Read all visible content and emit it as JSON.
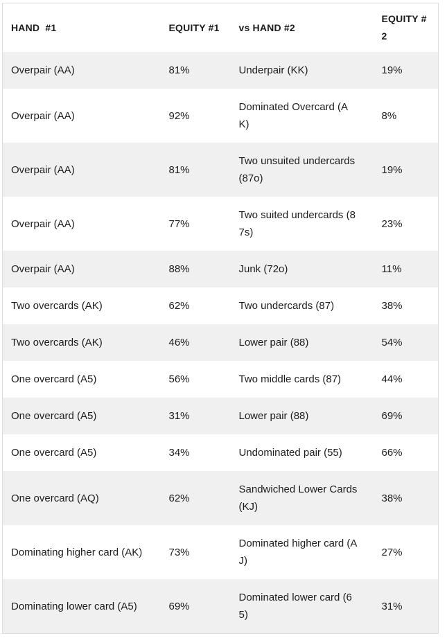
{
  "page": {
    "background": "#ffffff"
  },
  "table": {
    "stripe_color": "#f0f0f0",
    "border_color": "#dcdcdc",
    "text_color": "#1c1c1c",
    "columns": [
      {
        "label": "HAND  #1"
      },
      {
        "label": "EQUITY #1"
      },
      {
        "label": "vs HAND #2"
      },
      {
        "label": "EQUITY #\n2"
      }
    ],
    "rows": [
      {
        "hand1": "Overpair (AA)",
        "equity1": "81%",
        "hand2": "Underpair (KK)",
        "equity2": "19%"
      },
      {
        "hand1": "Overpair (AA)",
        "equity1": "92%",
        "hand2": "Dominated Overcard (A\nK)",
        "equity2": "8%"
      },
      {
        "hand1": "Overpair (AA)",
        "equity1": "81%",
        "hand2": "Two unsuited undercards\n(87o)",
        "equity2": "19%"
      },
      {
        "hand1": "Overpair (AA)",
        "equity1": "77%",
        "hand2": "Two suited undercards (8\n7s)",
        "equity2": "23%"
      },
      {
        "hand1": "Overpair (AA)",
        "equity1": "88%",
        "hand2": "Junk (72o)",
        "equity2": "11%"
      },
      {
        "hand1": "Two overcards (AK)",
        "equity1": "62%",
        "hand2": "Two undercards (87)",
        "equity2": "38%"
      },
      {
        "hand1": "Two overcards (AK)",
        "equity1": "46%",
        "hand2": "Lower pair (88)",
        "equity2": "54%"
      },
      {
        "hand1": "One overcard (A5)",
        "equity1": "56%",
        "hand2": "Two middle cards (87)",
        "equity2": "44%"
      },
      {
        "hand1": "One overcard (A5)",
        "equity1": "31%",
        "hand2": "Lower pair (88)",
        "equity2": "69%"
      },
      {
        "hand1": "One overcard (A5)",
        "equity1": "34%",
        "hand2": "Undominated pair (55)",
        "equity2": "66%"
      },
      {
        "hand1": "One overcard (AQ)",
        "equity1": "62%",
        "hand2": "Sandwiched Lower Cards\n(KJ)",
        "equity2": "38%"
      },
      {
        "hand1": "Dominating higher card (AK)",
        "equity1": "73%",
        "hand2": "Dominated higher card (A\nJ)",
        "equity2": "27%"
      },
      {
        "hand1": "Dominating lower card (A5)",
        "equity1": "69%",
        "hand2": "Dominated lower card (6\n5)",
        "equity2": "31%"
      }
    ]
  }
}
